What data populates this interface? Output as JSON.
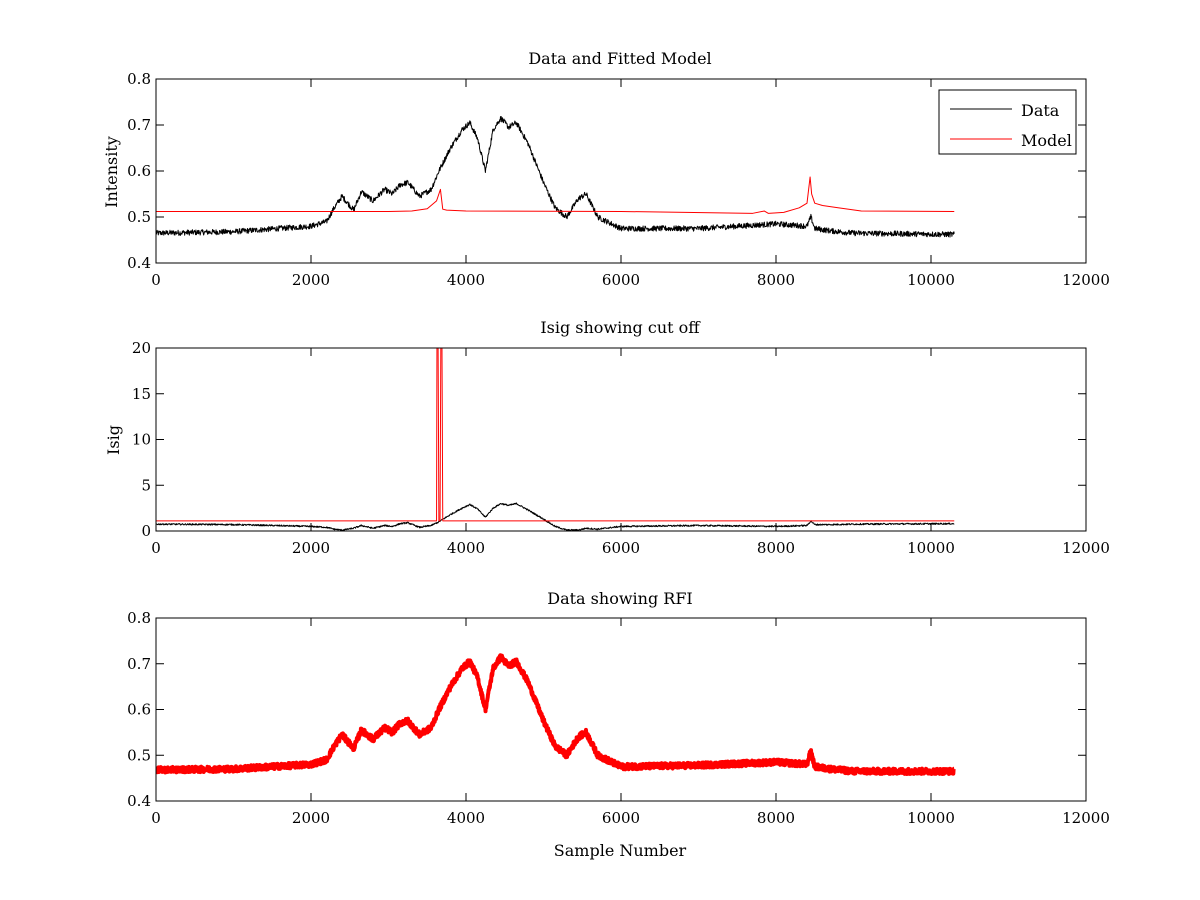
{
  "figure": {
    "background": "#ffffff",
    "axis_color": "#000000"
  },
  "chart_data": [
    {
      "type": "line",
      "title": "Data and Fitted Model",
      "xlabel": "",
      "ylabel": "Intensity",
      "xlim": [
        0,
        12000
      ],
      "ylim": [
        0.4,
        0.8
      ],
      "xticks": [
        0,
        2000,
        4000,
        6000,
        8000,
        10000,
        12000
      ],
      "yticks": [
        0.4,
        0.5,
        0.6,
        0.7,
        0.8
      ],
      "xtick_labels": [
        "0",
        "2000",
        "4000",
        "6000",
        "8000",
        "10000",
        "12000"
      ],
      "ytick_labels": [
        "0.4",
        "0.5",
        "0.6",
        "0.7",
        "0.8"
      ],
      "grid": false,
      "legend": {
        "position": "top-right",
        "entries": [
          "Data",
          "Model"
        ]
      },
      "series": [
        {
          "name": "Data",
          "color": "#000000",
          "style": "noisy-thin",
          "noise": 0.006,
          "x": [
            0,
            1000,
            2000,
            2200,
            2300,
            2400,
            2550,
            2650,
            2800,
            2950,
            3050,
            3150,
            3250,
            3400,
            3550,
            3650,
            3800,
            3950,
            4050,
            4150,
            4250,
            4350,
            4450,
            4550,
            4650,
            4800,
            5000,
            5150,
            5300,
            5450,
            5550,
            5700,
            6000,
            7000,
            8000,
            8400,
            8450,
            8500,
            8700,
            9000,
            10300
          ],
          "y": [
            0.465,
            0.468,
            0.48,
            0.49,
            0.52,
            0.545,
            0.515,
            0.555,
            0.535,
            0.56,
            0.55,
            0.57,
            0.575,
            0.545,
            0.56,
            0.6,
            0.65,
            0.69,
            0.705,
            0.67,
            0.6,
            0.69,
            0.715,
            0.695,
            0.705,
            0.66,
            0.575,
            0.52,
            0.5,
            0.54,
            0.55,
            0.5,
            0.475,
            0.475,
            0.485,
            0.48,
            0.5,
            0.475,
            0.47,
            0.465,
            0.462
          ]
        },
        {
          "name": "Model",
          "color": "#ff0000",
          "style": "smooth-thin",
          "noise": 0,
          "x": [
            0,
            3000,
            3300,
            3500,
            3620,
            3670,
            3700,
            3750,
            4000,
            6000,
            7700,
            7850,
            7900,
            8100,
            8300,
            8400,
            8440,
            8460,
            8500,
            8600,
            8800,
            9100,
            10300
          ],
          "y": [
            0.512,
            0.512,
            0.513,
            0.518,
            0.535,
            0.56,
            0.517,
            0.515,
            0.513,
            0.512,
            0.508,
            0.513,
            0.508,
            0.51,
            0.52,
            0.53,
            0.587,
            0.55,
            0.53,
            0.525,
            0.52,
            0.513,
            0.512
          ]
        }
      ]
    },
    {
      "type": "line",
      "title": "Isig showing cut off",
      "xlabel": "",
      "ylabel": "Isig",
      "xlim": [
        0,
        12000
      ],
      "ylim": [
        0,
        20
      ],
      "xticks": [
        0,
        2000,
        4000,
        6000,
        8000,
        10000,
        12000
      ],
      "yticks": [
        0,
        5,
        10,
        15,
        20
      ],
      "xtick_labels": [
        "0",
        "2000",
        "4000",
        "6000",
        "8000",
        "10000",
        "12000"
      ],
      "ytick_labels": [
        "0",
        "5",
        "10",
        "15",
        "20"
      ],
      "grid": false,
      "series": [
        {
          "name": "",
          "color": "#000000",
          "style": "noisy-thin",
          "noise": 0.08,
          "x": [
            0,
            1000,
            2000,
            2200,
            2300,
            2400,
            2550,
            2650,
            2800,
            2950,
            3050,
            3150,
            3250,
            3400,
            3550,
            3650,
            3800,
            3950,
            4050,
            4150,
            4250,
            4350,
            4450,
            4550,
            4650,
            4800,
            5000,
            5150,
            5300,
            5450,
            5550,
            5700,
            6000,
            7000,
            8000,
            8400,
            8450,
            8500,
            8700,
            9000,
            10300
          ],
          "y": [
            0.75,
            0.7,
            0.5,
            0.4,
            0.2,
            0.1,
            0.3,
            0.6,
            0.3,
            0.6,
            0.5,
            0.8,
            0.9,
            0.4,
            0.6,
            1.0,
            1.8,
            2.5,
            2.9,
            2.4,
            1.5,
            2.5,
            3.0,
            2.8,
            3.0,
            2.3,
            1.3,
            0.5,
            0.1,
            0.1,
            0.3,
            0.2,
            0.5,
            0.6,
            0.5,
            0.6,
            1.1,
            0.7,
            0.7,
            0.75,
            0.8
          ]
        },
        {
          "name": "",
          "color": "#ff0000",
          "style": "smooth-thin",
          "noise": 0,
          "x": [
            0,
            3620,
            3625,
            3640,
            3650,
            3665,
            3675,
            3690,
            3700,
            10300
          ],
          "y": [
            1.1,
            1.1,
            20,
            20,
            1.1,
            1.1,
            20,
            20,
            1.1,
            1.1
          ]
        }
      ]
    },
    {
      "type": "line",
      "title": "Data showing RFI",
      "xlabel": "Sample Number",
      "ylabel": "",
      "xlim": [
        0,
        12000
      ],
      "ylim": [
        0.4,
        0.8
      ],
      "xticks": [
        0,
        2000,
        4000,
        6000,
        8000,
        10000,
        12000
      ],
      "yticks": [
        0.4,
        0.5,
        0.6,
        0.7,
        0.8
      ],
      "xtick_labels": [
        "0",
        "2000",
        "4000",
        "6000",
        "8000",
        "10000",
        "12000"
      ],
      "ytick_labels": [
        "0.4",
        "0.5",
        "0.6",
        "0.7",
        "0.8"
      ],
      "grid": false,
      "series": [
        {
          "name": "",
          "color": "#ff0000",
          "style": "noisy-thick",
          "noise": 0.006,
          "x": [
            0,
            1000,
            2000,
            2200,
            2300,
            2400,
            2550,
            2650,
            2800,
            2950,
            3050,
            3150,
            3250,
            3400,
            3550,
            3650,
            3800,
            3950,
            4050,
            4150,
            4250,
            4350,
            4450,
            4550,
            4650,
            4800,
            5000,
            5150,
            5300,
            5450,
            5550,
            5700,
            6000,
            7000,
            8000,
            8400,
            8450,
            8500,
            8700,
            9000,
            10300
          ],
          "y": [
            0.468,
            0.47,
            0.48,
            0.49,
            0.52,
            0.545,
            0.515,
            0.555,
            0.535,
            0.56,
            0.55,
            0.57,
            0.575,
            0.545,
            0.56,
            0.6,
            0.65,
            0.69,
            0.705,
            0.67,
            0.6,
            0.69,
            0.715,
            0.695,
            0.705,
            0.66,
            0.575,
            0.52,
            0.5,
            0.54,
            0.55,
            0.5,
            0.475,
            0.478,
            0.485,
            0.48,
            0.51,
            0.475,
            0.47,
            0.465,
            0.465
          ]
        }
      ]
    }
  ]
}
